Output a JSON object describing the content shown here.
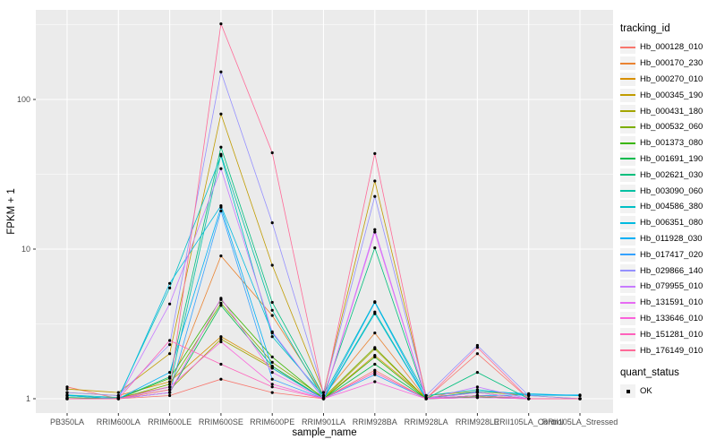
{
  "chart_data": {
    "type": "line",
    "title": "",
    "xlabel": "sample_name",
    "ylabel": "FPKM + 1",
    "yscale": "log10",
    "ylim": [
      1,
      340
    ],
    "yticks": [
      1,
      10,
      100
    ],
    "grid": "on",
    "panel_bg": "#EBEBEB",
    "grid_color": "#FFFFFF",
    "point_color": "#000000",
    "tick_label_color": "#4D4D4D",
    "categories": [
      "PB350LA",
      "RRIM600LA",
      "RRIM600LE",
      "RRIM600SE",
      "RRIM600PE",
      "RRIM901LA",
      "RRIM928BA",
      "RRIM928LA",
      "RRIM928LE",
      "RRII105LA_Control",
      "RRII105LA_Stressed"
    ],
    "legend": {
      "title": "tracking_id",
      "position": "right"
    },
    "quant_legend": {
      "title": "quant_status",
      "items": [
        "OK"
      ]
    },
    "series": [
      {
        "name": "Hb_000128_010",
        "color": "#F8766D",
        "values": [
          1.2,
          1.0,
          1.05,
          1.35,
          1.1,
          1.0,
          1.55,
          1.0,
          2.0,
          1.0,
          1.0
        ]
      },
      {
        "name": "Hb_000170_230",
        "color": "#EA8331",
        "values": [
          1.0,
          1.02,
          1.2,
          9.0,
          3.6,
          1.05,
          2.75,
          1.0,
          1.05,
          1.0,
          1.0
        ]
      },
      {
        "name": "Hb_000270_010",
        "color": "#D89000",
        "values": [
          1.1,
          1.05,
          1.3,
          2.6,
          1.65,
          1.0,
          1.95,
          1.02,
          1.1,
          1.0,
          1.0
        ]
      },
      {
        "name": "Hb_000345_190",
        "color": "#C09B00",
        "values": [
          1.16,
          1.1,
          2.0,
          80.0,
          7.8,
          1.1,
          28.5,
          1.05,
          1.12,
          1.05,
          1.0
        ]
      },
      {
        "name": "Hb_000431_180",
        "color": "#A3A500",
        "values": [
          1.0,
          1.0,
          1.15,
          2.5,
          1.6,
          1.0,
          2.15,
          1.0,
          1.02,
          1.0,
          1.0
        ]
      },
      {
        "name": "Hb_000532_060",
        "color": "#7CAE00",
        "values": [
          1.05,
          1.0,
          1.25,
          4.35,
          1.75,
          1.02,
          2.2,
          1.0,
          1.05,
          1.0,
          1.0
        ]
      },
      {
        "name": "Hb_001373_080",
        "color": "#39B600",
        "values": [
          1.0,
          1.0,
          1.37,
          4.6,
          1.9,
          1.0,
          1.9,
          1.0,
          1.03,
          1.0,
          1.0
        ]
      },
      {
        "name": "Hb_001691_190",
        "color": "#00BB4E",
        "values": [
          1.02,
          1.0,
          1.1,
          4.2,
          1.65,
          1.0,
          1.7,
          1.0,
          1.05,
          1.0,
          1.0
        ]
      },
      {
        "name": "Hb_002621_030",
        "color": "#00BF7D",
        "values": [
          1.05,
          1.0,
          1.4,
          48.0,
          4.4,
          1.05,
          10.2,
          1.0,
          1.5,
          1.0,
          1.0
        ]
      },
      {
        "name": "Hb_003090_060",
        "color": "#00C1A3",
        "values": [
          1.0,
          1.0,
          1.2,
          43.0,
          3.9,
          1.0,
          3.8,
          1.0,
          1.1,
          1.0,
          1.0
        ]
      },
      {
        "name": "Hb_004586_380",
        "color": "#00BFC4",
        "values": [
          1.06,
          1.02,
          5.5,
          42.0,
          2.6,
          1.05,
          4.45,
          1.05,
          1.15,
          1.06,
          1.05
        ]
      },
      {
        "name": "Hb_006351_080",
        "color": "#00BAE0",
        "values": [
          1.0,
          1.0,
          5.9,
          19.5,
          2.75,
          1.0,
          3.7,
          1.0,
          1.12,
          1.08,
          1.05
        ]
      },
      {
        "name": "Hb_011928_030",
        "color": "#00B0F6",
        "values": [
          1.05,
          1.0,
          1.5,
          19.0,
          1.6,
          1.0,
          4.4,
          1.0,
          1.05,
          1.06,
          1.06
        ]
      },
      {
        "name": "Hb_017417_020",
        "color": "#35A2FF",
        "values": [
          1.0,
          1.0,
          1.1,
          18.0,
          1.35,
          1.0,
          1.45,
          1.0,
          1.02,
          1.0,
          1.0
        ]
      },
      {
        "name": "Hb_029866_140",
        "color": "#9590FF",
        "values": [
          1.1,
          1.05,
          2.3,
          153.0,
          15.0,
          1.1,
          22.5,
          1.05,
          2.27,
          1.05,
          1.0
        ]
      },
      {
        "name": "Hb_079955_010",
        "color": "#C77CFF",
        "values": [
          1.0,
          1.0,
          4.3,
          34.5,
          2.8,
          1.0,
          13.5,
          1.0,
          1.2,
          1.0,
          1.0
        ]
      },
      {
        "name": "Hb_131591_010",
        "color": "#E76BF3",
        "values": [
          1.0,
          1.0,
          1.1,
          4.7,
          1.5,
          1.0,
          13.0,
          1.0,
          1.1,
          1.0,
          1.0
        ]
      },
      {
        "name": "Hb_133646_010",
        "color": "#FA62DB",
        "values": [
          1.0,
          1.0,
          1.2,
          2.4,
          1.25,
          1.0,
          1.3,
          1.0,
          1.02,
          1.0,
          1.0
        ]
      },
      {
        "name": "Hb_151281_010",
        "color": "#FF62BC",
        "values": [
          1.0,
          1.0,
          2.45,
          1.7,
          1.2,
          1.0,
          1.5,
          1.0,
          1.05,
          1.0,
          1.0
        ]
      },
      {
        "name": "Hb_176149_010",
        "color": "#FF6A98",
        "values": [
          1.0,
          1.0,
          1.15,
          320.0,
          44.0,
          1.05,
          43.5,
          1.0,
          2.2,
          1.0,
          1.0
        ]
      }
    ]
  }
}
